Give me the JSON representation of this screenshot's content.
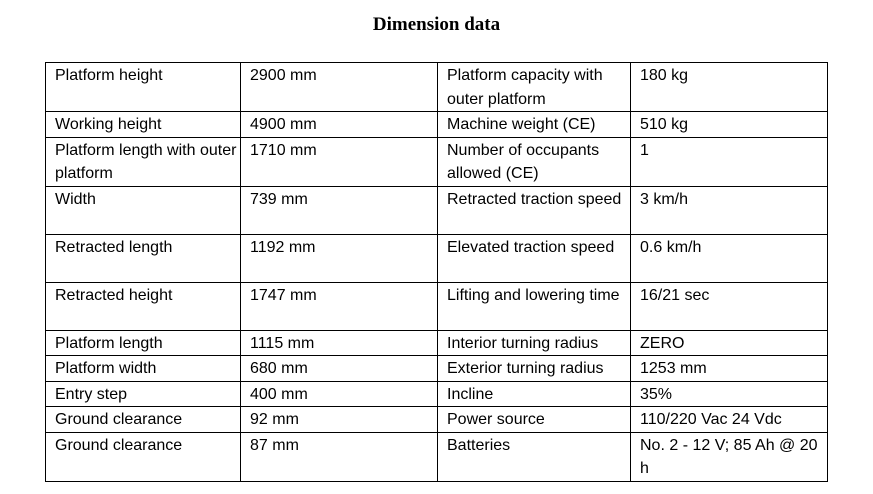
{
  "title": "Dimension data",
  "table": {
    "rows": [
      [
        "Platform height",
        "2900 mm",
        "Platform capacity with outer platform",
        "180 kg"
      ],
      [
        "Working height",
        "4900 mm",
        "Machine weight (CE)",
        "510 kg"
      ],
      [
        "Platform length with outer platform",
        "1710 mm",
        "Number of occupants allowed (CE)",
        "1"
      ],
      [
        "Width",
        "739 mm",
        "Retracted traction speed",
        "3 km/h"
      ],
      [
        "Retracted length",
        "1192 mm",
        "Elevated traction speed",
        "0.6 km/h"
      ],
      [
        "Retracted height",
        "1747 mm",
        "Lifting and lowering time",
        "16/21 sec"
      ],
      [
        "Platform length",
        "1115 mm",
        "Interior turning radius",
        "ZERO"
      ],
      [
        "Platform width",
        "680 mm",
        "Exterior turning radius",
        "1253 mm"
      ],
      [
        "Entry step",
        "400 mm",
        "Incline",
        "35%"
      ],
      [
        "Ground clearance",
        "92 mm",
        "Power source",
        "110/220 Vac 24 Vdc"
      ],
      [
        "Ground clearance",
        "87 mm",
        "Batteries",
        "No. 2 - 12 V; 85 Ah @ 20 h"
      ]
    ]
  }
}
